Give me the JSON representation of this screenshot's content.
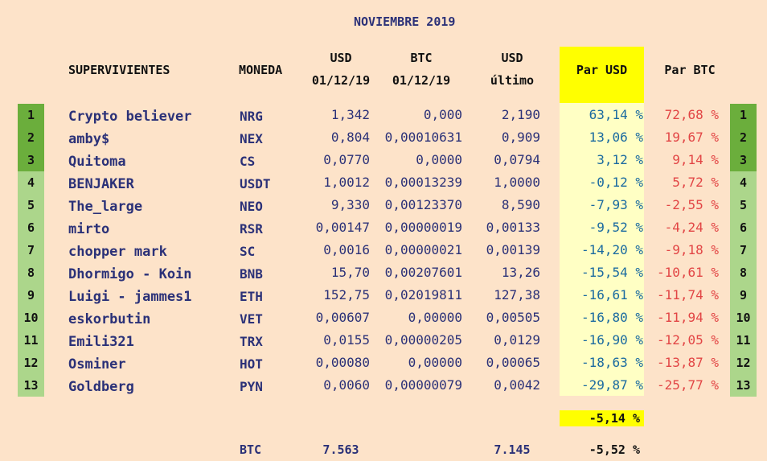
{
  "title": "NOVIEMBRE 2019",
  "headers": {
    "supervivientes": "SUPERVIVIENTES",
    "moneda": "MONEDA",
    "usd_date_top": "USD",
    "usd_date_bottom": "01/12/19",
    "btc_date_top": "BTC",
    "btc_date_bottom": "01/12/19",
    "usd_last_top": "USD",
    "usd_last_bottom": "último",
    "par_usd": "Par USD",
    "par_btc": "Par BTC"
  },
  "rows": [
    {
      "rank": "1",
      "name": "Crypto believer",
      "coin": "NRG",
      "usd": "1,342",
      "btc": "0,000",
      "last": "2,190",
      "par_usd": "63,14 %",
      "par_btc": "72,68 %",
      "rank_right": "1"
    },
    {
      "rank": "2",
      "name": "amby$",
      "coin": "NEX",
      "usd": "0,804",
      "btc": "0,00010631",
      "last": "0,909",
      "par_usd": "13,06 %",
      "par_btc": "19,67 %",
      "rank_right": "2"
    },
    {
      "rank": "3",
      "name": "Quitoma",
      "coin": "CS",
      "usd": "0,0770",
      "btc": "0,0000",
      "last": "0,0794",
      "par_usd": "3,12 %",
      "par_btc": "9,14 %",
      "rank_right": "3"
    },
    {
      "rank": "4",
      "name": "BENJAKER",
      "coin": "USDT",
      "usd": "1,0012",
      "btc": "0,00013239",
      "last": "1,0000",
      "par_usd": "-0,12 %",
      "par_btc": "5,72 %",
      "rank_right": "4"
    },
    {
      "rank": "5",
      "name": "The_large",
      "coin": "NEO",
      "usd": "9,330",
      "btc": "0,00123370",
      "last": "8,590",
      "par_usd": "-7,93 %",
      "par_btc": "-2,55 %",
      "rank_right": "5"
    },
    {
      "rank": "6",
      "name": "mirto",
      "coin": "RSR",
      "usd": "0,00147",
      "btc": "0,00000019",
      "last": "0,00133",
      "par_usd": "-9,52 %",
      "par_btc": "-4,24 %",
      "rank_right": "6"
    },
    {
      "rank": "7",
      "name": "chopper mark",
      "coin": "SC",
      "usd": "0,0016",
      "btc": "0,00000021",
      "last": "0,00139",
      "par_usd": "-14,20 %",
      "par_btc": "-9,18 %",
      "rank_right": "7"
    },
    {
      "rank": "8",
      "name": "Dhormigo - Koin",
      "coin": "BNB",
      "usd": "15,70",
      "btc": "0,00207601",
      "last": "13,26",
      "par_usd": "-15,54 %",
      "par_btc": "-10,61 %",
      "rank_right": "8"
    },
    {
      "rank": "9",
      "name": "Luigi - jammes1",
      "coin": "ETH",
      "usd": "152,75",
      "btc": "0,02019811",
      "last": "127,38",
      "par_usd": "-16,61 %",
      "par_btc": "-11,74 %",
      "rank_right": "9"
    },
    {
      "rank": "10",
      "name": "eskorbutin",
      "coin": "VET",
      "usd": "0,00607",
      "btc": "0,00000",
      "last": "0,00505",
      "par_usd": "-16,80 %",
      "par_btc": "-11,94 %",
      "rank_right": "10"
    },
    {
      "rank": "11",
      "name": "Emili321",
      "coin": "TRX",
      "usd": "0,0155",
      "btc": "0,00000205",
      "last": "0,0129",
      "par_usd": "-16,90 %",
      "par_btc": "-12,05 %",
      "rank_right": "11"
    },
    {
      "rank": "12",
      "name": "Osminer",
      "coin": "HOT",
      "usd": "0,00080",
      "btc": "0,00000",
      "last": "0,00065",
      "par_usd": "-18,63 %",
      "par_btc": "-13,87 %",
      "rank_right": "12"
    },
    {
      "rank": "13",
      "name": "Goldberg",
      "coin": "PYN",
      "usd": "0,0060",
      "btc": "0,00000079",
      "last": "0,0042",
      "par_usd": "-29,87 %",
      "par_btc": "-25,77 %",
      "rank_right": "13"
    }
  ],
  "average": "-5,14 %",
  "btc_row": {
    "label": "BTC",
    "usd": "7.563",
    "last": "7.145",
    "par_usd": "-5,52 %"
  },
  "colors": {
    "background": "#fde3c9",
    "rank_top3": "#6bae3c",
    "rank_rest": "#acd68b",
    "par_usd_header": "#ffff00",
    "par_usd_body": "#ffffc4",
    "positive_usd": "#1a6aa0",
    "par_btc": "#e24545",
    "text_navy": "#2b3178"
  }
}
